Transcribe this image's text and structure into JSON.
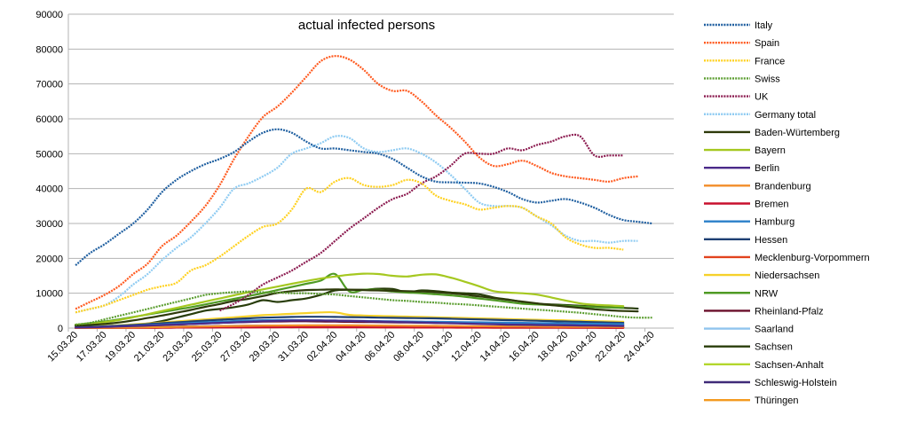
{
  "chart_data": {
    "type": "line",
    "title": "actual infected persons",
    "xlabel": "",
    "ylabel": "",
    "ylim": [
      0,
      90000
    ],
    "y_ticks": [
      0,
      10000,
      20000,
      30000,
      40000,
      50000,
      60000,
      70000,
      80000,
      90000
    ],
    "grid": "horizontal",
    "legend_position": "right",
    "categories": [
      "15.03.20",
      "16.03.20",
      "17.03.20",
      "18.03.20",
      "19.03.20",
      "20.03.20",
      "21.03.20",
      "22.03.20",
      "23.03.20",
      "24.03.20",
      "25.03.20",
      "26.03.20",
      "27.03.20",
      "28.03.20",
      "29.03.20",
      "30.03.20",
      "31.03.20",
      "01.04.20",
      "02.04.20",
      "03.04.20",
      "04.04.20",
      "05.04.20",
      "06.04.20",
      "07.04.20",
      "08.04.20",
      "09.04.20",
      "10.04.20",
      "11.04.20",
      "12.04.20",
      "13.04.20",
      "14.04.20",
      "15.04.20",
      "16.04.20",
      "17.04.20",
      "18.04.20",
      "19.04.20",
      "20.04.20",
      "21.04.20",
      "22.04.20",
      "23.04.20",
      "24.04.20",
      "25.04.20"
    ],
    "x_tick_labels": [
      "15.03.20",
      "17.03.20",
      "19.03.20",
      "21.03.20",
      "23.03.20",
      "25.03.20",
      "27.03.20",
      "29.03.20",
      "31.03.20",
      "02.04.20",
      "04.04.20",
      "06.04.20",
      "08.04.20",
      "10.04.20",
      "12.04.20",
      "14.04.20",
      "16.04.20",
      "18.04.20",
      "20.04.20",
      "22.04.20",
      "24.04.20"
    ],
    "series": [
      {
        "name": "Italy",
        "color": "#1f5fa0",
        "style": "dotted",
        "values": [
          18000,
          21500,
          24000,
          27000,
          30000,
          34000,
          39000,
          42500,
          45000,
          47000,
          48500,
          50500,
          53500,
          56000,
          57000,
          56000,
          53500,
          51500,
          51500,
          51000,
          50500,
          50000,
          48500,
          46000,
          43500,
          42000,
          41800,
          41700,
          41500,
          40500,
          39000,
          37000,
          36000,
          36500,
          37000,
          36000,
          34500,
          32500,
          31000,
          30500,
          30000,
          null
        ]
      },
      {
        "name": "Spain",
        "color": "#ff5a1f",
        "style": "dotted",
        "values": [
          5500,
          7500,
          9500,
          12000,
          15500,
          18500,
          23500,
          26500,
          30500,
          35000,
          41000,
          48500,
          55000,
          60500,
          63500,
          67500,
          72000,
          76500,
          78000,
          77000,
          74000,
          70000,
          68000,
          68000,
          65000,
          61000,
          57500,
          53500,
          49000,
          46500,
          47000,
          48000,
          46500,
          44500,
          43500,
          43000,
          42500,
          42000,
          43000,
          43500,
          null,
          null
        ]
      },
      {
        "name": "France",
        "color": "#ffd11f",
        "style": "dotted",
        "values": [
          4500,
          5500,
          6500,
          8000,
          9500,
          11000,
          12000,
          13000,
          16500,
          18000,
          20500,
          23500,
          26500,
          29000,
          30000,
          34000,
          40000,
          39000,
          42000,
          43000,
          41000,
          40500,
          41000,
          42500,
          41500,
          38000,
          36500,
          35500,
          34000,
          34500,
          35000,
          34500,
          32000,
          30000,
          26000,
          24000,
          23000,
          23000,
          22500,
          null,
          null,
          null
        ]
      },
      {
        "name": "Swiss",
        "color": "#5c9e31",
        "style": "dotted",
        "values": [
          1000,
          1500,
          2500,
          3500,
          4500,
          5500,
          6500,
          7500,
          8500,
          9500,
          10000,
          10300,
          10500,
          10300,
          10200,
          10000,
          10000,
          9800,
          9600,
          9200,
          8800,
          8400,
          8000,
          7800,
          7500,
          7300,
          7000,
          6800,
          6500,
          6200,
          5900,
          5600,
          5300,
          5000,
          4700,
          4400,
          4000,
          3600,
          3200,
          3000,
          3000,
          null
        ]
      },
      {
        "name": "UK",
        "color": "#8b1a4f",
        "style": "dotted",
        "values": [
          null,
          null,
          null,
          null,
          null,
          null,
          null,
          null,
          null,
          null,
          5000,
          7000,
          9500,
          12500,
          14500,
          16500,
          19000,
          21500,
          25000,
          28500,
          31500,
          34500,
          37000,
          38500,
          41500,
          43500,
          46500,
          50000,
          50000,
          50000,
          51500,
          51000,
          52500,
          53500,
          55000,
          55000,
          49500,
          49500,
          49500,
          null,
          null,
          null
        ]
      },
      {
        "name": "Germany total",
        "color": "#8ecbf2",
        "style": "dotted",
        "values": [
          4500,
          5500,
          6500,
          9000,
          12500,
          15500,
          19500,
          23000,
          26000,
          30000,
          34500,
          40000,
          41500,
          43500,
          46000,
          50000,
          51500,
          53000,
          55000,
          54500,
          51500,
          50500,
          51000,
          51500,
          50000,
          47500,
          44000,
          40000,
          36000,
          35000,
          35000,
          34500,
          32000,
          29500,
          26500,
          25000,
          25000,
          24500,
          25000,
          25000,
          null,
          null
        ]
      },
      {
        "name": "Baden-Würtemberg",
        "color": "#2e3a0a",
        "style": "solid",
        "values": [
          700,
          900,
          1200,
          1600,
          2200,
          2900,
          3600,
          4400,
          5200,
          6100,
          6900,
          7800,
          8400,
          9200,
          10100,
          10600,
          10900,
          11000,
          11100,
          11000,
          10900,
          10800,
          10700,
          10600,
          10500,
          10300,
          10000,
          9600,
          9100,
          8600,
          8100,
          7600,
          7100,
          6600,
          6200,
          5800,
          5400,
          5100,
          4900,
          4800,
          null,
          null
        ]
      },
      {
        "name": "Bayern",
        "color": "#a5c820",
        "style": "solid",
        "values": [
          900,
          1200,
          1700,
          2300,
          3100,
          4000,
          4900,
          5800,
          6700,
          7600,
          8500,
          9400,
          10300,
          11100,
          11900,
          12700,
          13500,
          14200,
          14800,
          15300,
          15600,
          15500,
          15000,
          14800,
          15300,
          15400,
          14500,
          13300,
          12000,
          10600,
          10200,
          10000,
          9600,
          8800,
          7900,
          7100,
          6700,
          6500,
          6300,
          null,
          null,
          null
        ]
      },
      {
        "name": "Berlin",
        "color": "#4b2a8a",
        "style": "solid",
        "values": [
          150,
          220,
          320,
          450,
          600,
          750,
          900,
          1050,
          1200,
          1350,
          1500,
          1650,
          1800,
          1950,
          2050,
          2150,
          2200,
          2200,
          2150,
          2100,
          2000,
          1900,
          1800,
          1700,
          1600,
          1500,
          1400,
          1300,
          1200,
          1100,
          1000,
          950,
          900,
          850,
          800,
          750,
          700,
          650,
          600,
          null,
          null,
          null
        ]
      },
      {
        "name": "Brandenburg",
        "color": "#f28c28",
        "style": "solid",
        "values": [
          40,
          60,
          90,
          130,
          180,
          230,
          290,
          350,
          410,
          470,
          530,
          590,
          650,
          700,
          740,
          770,
          790,
          800,
          800,
          790,
          770,
          750,
          720,
          690,
          660,
          630,
          600,
          570,
          540,
          510,
          480,
          450,
          420,
          400,
          380,
          360,
          340,
          320,
          300,
          null,
          null,
          null
        ]
      },
      {
        "name": "Bremen",
        "color": "#c8102e",
        "style": "solid",
        "values": [
          20,
          30,
          45,
          60,
          80,
          100,
          120,
          140,
          160,
          180,
          200,
          220,
          240,
          260,
          280,
          290,
          300,
          300,
          300,
          290,
          280,
          270,
          260,
          250,
          240,
          230,
          220,
          210,
          200,
          190,
          180,
          170,
          160,
          150,
          140,
          130,
          120,
          110,
          100,
          null,
          null,
          null
        ]
      },
      {
        "name": "Hamburg",
        "color": "#2a7fc9",
        "style": "solid",
        "values": [
          180,
          260,
          380,
          520,
          680,
          850,
          1050,
          1250,
          1450,
          1650,
          1850,
          2000,
          2150,
          2250,
          2300,
          2300,
          2250,
          2200,
          2150,
          2100,
          2050,
          2000,
          1950,
          1900,
          1850,
          1800,
          1750,
          1700,
          1650,
          1600,
          1550,
          1500,
          1450,
          1400,
          1350,
          1300,
          1250,
          1200,
          1150,
          null,
          null,
          null
        ]
      },
      {
        "name": "Hessen",
        "color": "#1e3f73",
        "style": "solid",
        "values": [
          250,
          350,
          500,
          700,
          900,
          1150,
          1400,
          1650,
          1900,
          2150,
          2400,
          2600,
          2800,
          3000,
          3100,
          3200,
          3250,
          3250,
          3200,
          3150,
          3100,
          3000,
          2950,
          2900,
          2850,
          2800,
          2700,
          2600,
          2500,
          2400,
          2300,
          2200,
          2100,
          2000,
          1900,
          1800,
          1700,
          1600,
          1500,
          null,
          null,
          null
        ]
      },
      {
        "name": "Mecklenburg-Vorpommern",
        "color": "#e2431e",
        "style": "solid",
        "values": [
          20,
          30,
          45,
          60,
          80,
          100,
          120,
          140,
          160,
          180,
          200,
          210,
          220,
          230,
          240,
          240,
          240,
          230,
          220,
          210,
          200,
          190,
          180,
          170,
          160,
          150,
          140,
          130,
          120,
          110,
          100,
          90,
          85,
          80,
          75,
          70,
          65,
          60,
          55,
          null,
          null,
          null
        ]
      },
      {
        "name": "Niedersachsen",
        "color": "#f6d12a",
        "style": "solid",
        "values": [
          300,
          400,
          600,
          800,
          1050,
          1300,
          1600,
          1900,
          2200,
          2500,
          2800,
          3100,
          3400,
          3700,
          3900,
          4100,
          4300,
          4500,
          4500,
          3800,
          3600,
          3500,
          3400,
          3300,
          3200,
          3100,
          3000,
          2900,
          2800,
          2700,
          2600,
          2500,
          2400,
          2300,
          2200,
          2100,
          2000,
          1900,
          1800,
          null,
          null,
          null
        ]
      },
      {
        "name": "NRW",
        "color": "#4f9a24",
        "style": "solid",
        "values": [
          1000,
          1400,
          1900,
          2500,
          3200,
          3900,
          4600,
          5300,
          6000,
          6800,
          7600,
          8400,
          9200,
          10000,
          10900,
          11800,
          12700,
          13600,
          15500,
          10500,
          11000,
          11000,
          10500,
          10200,
          10000,
          9700,
          9400,
          9000,
          8500,
          8000,
          7500,
          7000,
          6800,
          6600,
          6400,
          6200,
          6000,
          5900,
          5800,
          null,
          null,
          null
        ]
      },
      {
        "name": "Rheinland-Pfalz",
        "color": "#6a0f2a",
        "style": "solid",
        "values": [
          150,
          220,
          320,
          450,
          600,
          750,
          900,
          1050,
          1200,
          1350,
          1500,
          1650,
          1750,
          1850,
          1900,
          1950,
          1950,
          1900,
          1850,
          1800,
          1750,
          1700,
          1650,
          1600,
          1550,
          1500,
          1450,
          1400,
          1350,
          1300,
          1250,
          1200,
          1150,
          1100,
          1050,
          1000,
          950,
          900,
          850,
          null,
          null,
          null
        ]
      },
      {
        "name": "Saarland",
        "color": "#8fc4ee",
        "style": "solid",
        "values": [
          40,
          60,
          90,
          130,
          180,
          230,
          280,
          330,
          380,
          430,
          470,
          510,
          540,
          560,
          570,
          570,
          560,
          550,
          540,
          530,
          520,
          510,
          500,
          490,
          480,
          470,
          460,
          450,
          440,
          430,
          420,
          410,
          400,
          390,
          380,
          370,
          360,
          350,
          340,
          null,
          null,
          null
        ]
      },
      {
        "name": "Sachsen",
        "color": "#283d0a",
        "style": "solid",
        "values": [
          150,
          250,
          400,
          600,
          900,
          1300,
          2000,
          3000,
          4000,
          5000,
          5500,
          6000,
          6800,
          8000,
          7500,
          8000,
          8500,
          9500,
          10800,
          11000,
          11000,
          11300,
          11200,
          10300,
          10800,
          10600,
          10200,
          10000,
          9700,
          8800,
          8200,
          7500,
          7000,
          6800,
          6600,
          6400,
          6200,
          6000,
          5800,
          5600,
          null,
          null
        ]
      },
      {
        "name": "Sachsen-Anhalt",
        "color": "#b3d62c",
        "style": "solid",
        "values": [
          30,
          50,
          80,
          120,
          170,
          230,
          290,
          350,
          410,
          470,
          520,
          560,
          600,
          630,
          650,
          660,
          660,
          650,
          640,
          620,
          600,
          580,
          560,
          540,
          520,
          500,
          480,
          460,
          440,
          420,
          400,
          380,
          360,
          340,
          320,
          300,
          280,
          260,
          240,
          null,
          null,
          null
        ]
      },
      {
        "name": "Schleswig-Holstein",
        "color": "#3f2a78",
        "style": "solid",
        "values": [
          60,
          90,
          130,
          180,
          240,
          300,
          360,
          420,
          480,
          540,
          590,
          630,
          660,
          690,
          700,
          700,
          690,
          680,
          670,
          650,
          630,
          610,
          590,
          570,
          550,
          530,
          510,
          490,
          470,
          450,
          430,
          410,
          390,
          370,
          350,
          330,
          310,
          290,
          270,
          null,
          null,
          null
        ]
      },
      {
        "name": "Thüringen",
        "color": "#f39a1f",
        "style": "solid",
        "values": [
          30,
          50,
          80,
          120,
          170,
          220,
          270,
          320,
          370,
          420,
          460,
          500,
          540,
          570,
          590,
          600,
          600,
          590,
          580,
          570,
          550,
          530,
          510,
          490,
          470,
          450,
          430,
          410,
          390,
          370,
          350,
          330,
          310,
          290,
          270,
          250,
          230,
          210,
          190,
          null,
          null,
          null
        ]
      }
    ]
  }
}
